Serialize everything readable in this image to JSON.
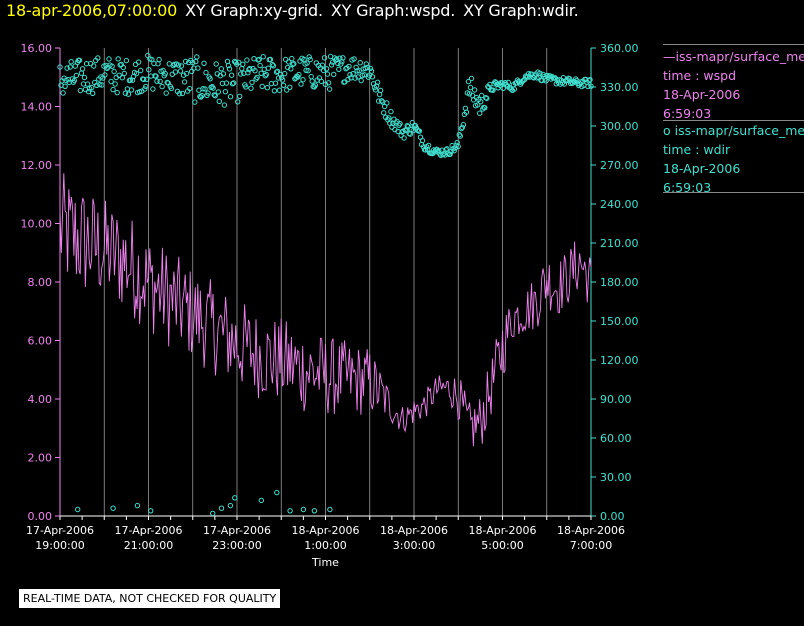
{
  "header": {
    "datetime": "18-apr-2006,07:00:00",
    "graphs": [
      "XY Graph:xy-grid.",
      "XY Graph:wspd.",
      "XY Graph:wdir."
    ]
  },
  "notice": "REAL-TIME DATA, NOT CHECKED FOR QUALITY",
  "legend": [
    {
      "name": "iss-mapr/surface_met",
      "var": "time : wspd",
      "date": "18-Apr-2006",
      "time": "6:59:03",
      "color": "#ee82ee",
      "marker": "line"
    },
    {
      "name": "iss-mapr/surface_met",
      "var": "time : wdir",
      "date": "18-Apr-2006",
      "time": "6:59:03",
      "color": "#40e0d0",
      "marker": "circle"
    }
  ],
  "colors": {
    "background": "#000000",
    "left_axis": "#ee82ee",
    "right_axis": "#40e0d0",
    "grid": "#9a9a9a",
    "header_date": "#ffff00"
  },
  "chart_data": {
    "type": "scatter",
    "xlabel": "Time",
    "x_ticks": [
      "17-Apr-2006\n19:00:00",
      "17-Apr-2006\n21:00:00",
      "17-Apr-2006\n23:00:00",
      "18-Apr-2006\n1:00:00",
      "18-Apr-2006\n3:00:00",
      "18-Apr-2006\n5:00:00",
      "18-Apr-2006\n7:00:00"
    ],
    "x_range_hours": [
      0,
      12
    ],
    "grid": "vertical lines at every hour",
    "y_left": {
      "ticks": [
        "0.00",
        "2.00",
        "4.00",
        "6.00",
        "8.00",
        "10.00",
        "12.00",
        "14.00",
        "16.00"
      ],
      "range": [
        0,
        16
      ]
    },
    "y_right": {
      "ticks": [
        "0.00",
        "30.00",
        "60.00",
        "90.00",
        "120.00",
        "150.00",
        "180.00",
        "210.00",
        "240.00",
        "270.00",
        "300.00",
        "330.00",
        "360.00"
      ],
      "range": [
        0,
        360
      ]
    },
    "series": [
      {
        "name": "time : wspd",
        "axis": "left",
        "style": "line",
        "x_hours": [
          0,
          0.5,
          1,
          1.5,
          2,
          2.5,
          3,
          3.5,
          4,
          4.5,
          5,
          5.5,
          6,
          6.5,
          7,
          7.25,
          7.5,
          7.75,
          8,
          8.25,
          8.5,
          8.75,
          9,
          9.25,
          9.5,
          9.75,
          10,
          10.25,
          10.5,
          10.75,
          11,
          11.25,
          11.5,
          11.75,
          12
        ],
        "values": [
          9.8,
          9.4,
          9.1,
          8.7,
          8.0,
          7.4,
          6.9,
          6.4,
          5.9,
          5.5,
          5.3,
          5.0,
          4.8,
          4.7,
          4.6,
          4.2,
          3.7,
          3.3,
          3.6,
          3.8,
          4.3,
          4.4,
          4.1,
          3.0,
          3.2,
          4.4,
          5.8,
          6.8,
          7.0,
          7.3,
          8.1,
          7.8,
          8.2,
          8.7,
          8.0
        ],
        "spread": [
          2.0,
          2.0,
          1.8,
          1.8,
          1.7,
          1.7,
          1.6,
          1.6,
          1.6,
          1.5,
          1.5,
          1.5,
          1.4,
          1.3,
          1.2,
          0.9,
          0.6,
          0.5,
          0.5,
          0.5,
          0.5,
          0.5,
          0.8,
          0.9,
          1.0,
          1.0,
          1.2,
          0.8,
          0.8,
          1.0,
          1.0,
          1.0,
          1.0,
          1.0,
          1.0
        ]
      },
      {
        "name": "time : wdir",
        "axis": "right",
        "style": "markers",
        "x_hours": [
          0,
          0.5,
          1,
          1.5,
          2,
          2.5,
          3,
          3.5,
          4,
          4.5,
          5,
          5.5,
          6,
          6.5,
          7,
          7.25,
          7.5,
          7.75,
          8,
          8.25,
          8.5,
          8.75,
          9,
          9.25,
          9.5,
          9.75,
          10,
          10.25,
          10.5,
          10.75,
          11,
          11.25,
          11.5,
          11.75,
          12
        ],
        "values": [
          335,
          338,
          340,
          338,
          341,
          338,
          336,
          332,
          334,
          340,
          339,
          342,
          340,
          345,
          344,
          320,
          305,
          295,
          300,
          285,
          280,
          280,
          285,
          330,
          315,
          330,
          332,
          330,
          338,
          340,
          336,
          335,
          334,
          333,
          333
        ],
        "spread": [
          14,
          14,
          14,
          14,
          14,
          14,
          18,
          18,
          16,
          14,
          14,
          12,
          14,
          10,
          10,
          8,
          6,
          5,
          5,
          4,
          3,
          3,
          4,
          10,
          10,
          4,
          3,
          3,
          3,
          3,
          3,
          3,
          3,
          3,
          3
        ],
        "low_outliers": {
          "x_hours": [
            0.4,
            1.2,
            1.75,
            2.05,
            3.45,
            3.65,
            3.85,
            3.95,
            4.55,
            4.9,
            5.2,
            5.5,
            5.75,
            6.1
          ],
          "values": [
            5,
            6,
            8,
            4,
            2,
            6,
            8,
            14,
            12,
            18,
            4,
            5,
            4,
            5
          ]
        }
      }
    ]
  }
}
